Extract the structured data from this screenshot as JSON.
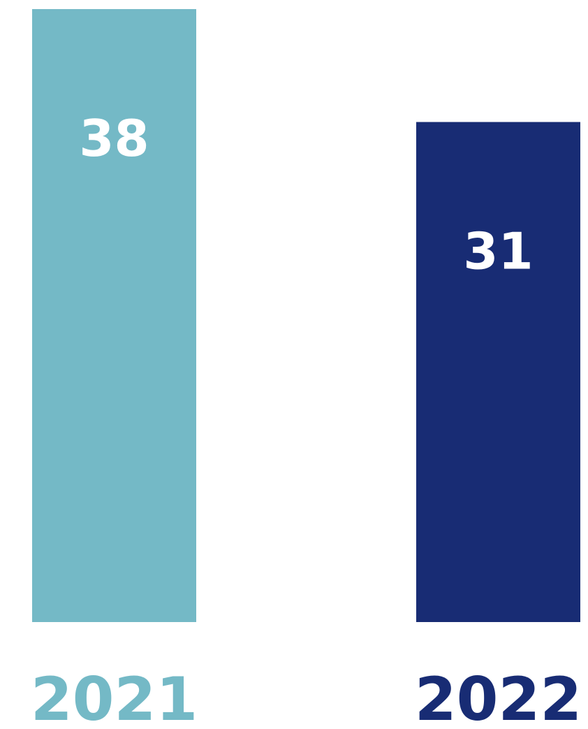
{
  "chart_data": {
    "type": "bar",
    "categories": [
      "2021",
      "2022"
    ],
    "values": [
      38,
      31
    ],
    "colors": [
      "#74b9c6",
      "#182c74"
    ],
    "data_labels": [
      "38",
      "31"
    ],
    "title": "",
    "xlabel": "",
    "ylabel": "",
    "ylim": [
      0,
      38
    ],
    "grid": false,
    "legend": "none"
  }
}
